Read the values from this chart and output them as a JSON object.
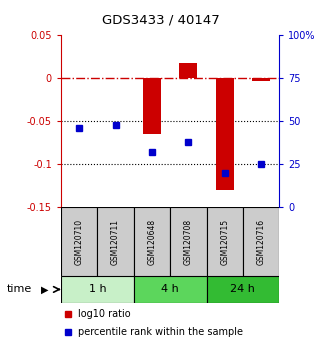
{
  "title": "GDS3433 / 40147",
  "samples": [
    "GSM120710",
    "GSM120711",
    "GSM120648",
    "GSM120708",
    "GSM120715",
    "GSM120716"
  ],
  "groups": [
    {
      "label": "1 h",
      "color": "#c8f0c8",
      "indices": [
        0,
        1
      ]
    },
    {
      "label": "4 h",
      "color": "#5cd65c",
      "indices": [
        2,
        3
      ]
    },
    {
      "label": "24 h",
      "color": "#33bb33",
      "indices": [
        4,
        5
      ]
    }
  ],
  "log10_ratio": [
    0.001,
    0.001,
    -0.065,
    0.018,
    -0.13,
    -0.003
  ],
  "percentile_rank": [
    46,
    48,
    32,
    38,
    20,
    25
  ],
  "ylim_left": [
    -0.15,
    0.05
  ],
  "ylim_right": [
    0,
    100
  ],
  "yticks_left": [
    -0.15,
    -0.1,
    -0.05,
    0.0,
    0.05
  ],
  "ytick_labels_left": [
    "-0.15",
    "-0.1",
    "-0.05",
    "0",
    "0.05"
  ],
  "yticks_right": [
    0,
    25,
    50,
    75,
    100
  ],
  "ytick_labels_right": [
    "0",
    "25",
    "50",
    "75",
    "100%"
  ],
  "bar_color": "#cc0000",
  "dot_color": "#0000cc",
  "hline_color": "#cc0000",
  "grid_color": "#000000",
  "sample_box_color": "#cccccc",
  "background_color": "#ffffff",
  "legend_bar_label": "log10 ratio",
  "legend_dot_label": "percentile rank within the sample"
}
